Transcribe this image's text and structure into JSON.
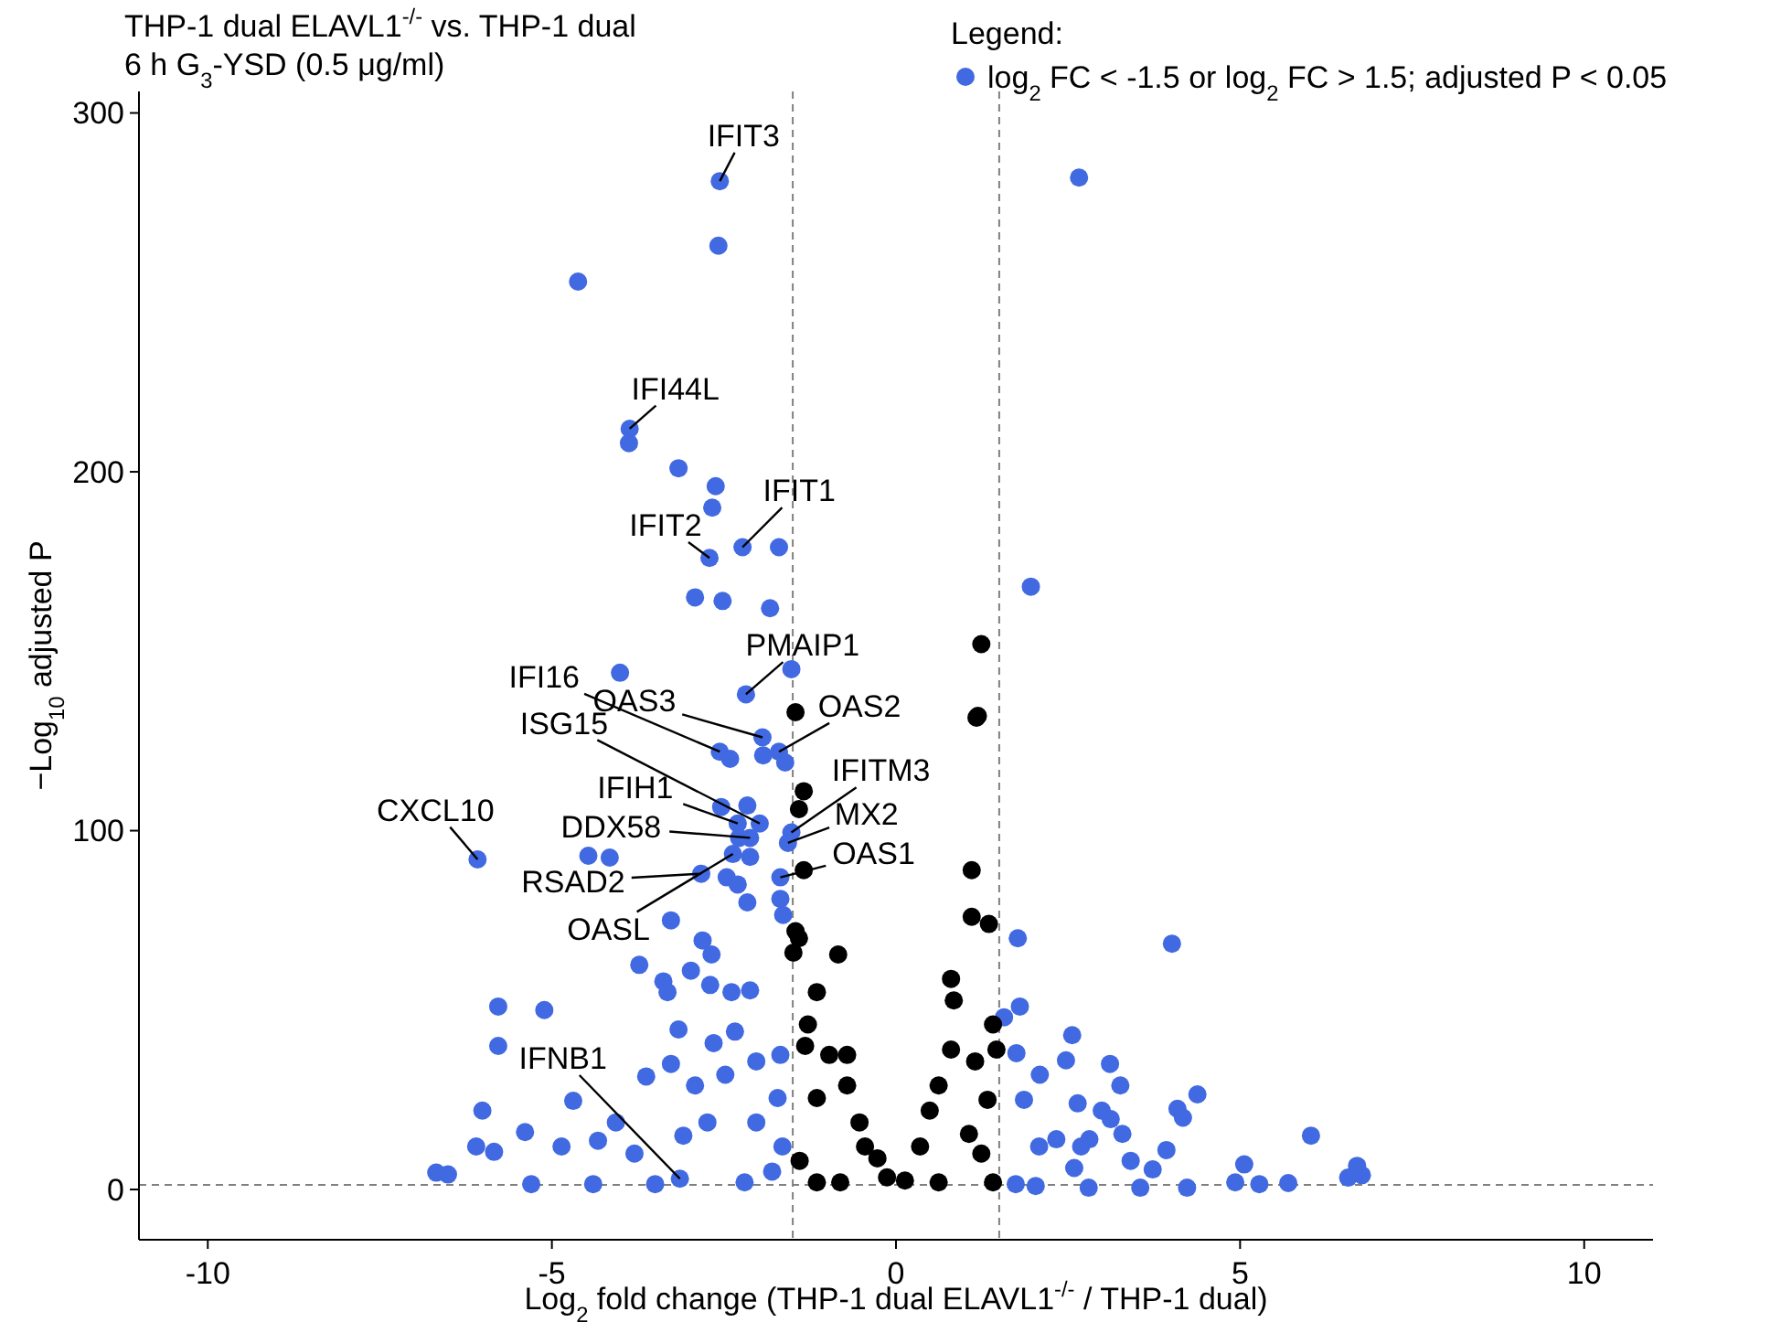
{
  "chart_data": {
    "type": "scatter",
    "title": "THP-1 dual ELAVL1$^{-/-}$ vs. THP-1 dual",
    "subtitle": "6 h G$_{3}$-YSD (0.5 μg/ml)",
    "xlabel": "Log$_{2}$ fold change (THP-1 dual ELAVL1$^{-/-}$ / THP-1 dual)",
    "ylabel": "−Log$_{10}$ adjusted P",
    "legend_title": "Legend:",
    "legend": "top right",
    "marker": "circle",
    "xlim": [
      -11,
      11
    ],
    "ylim": [
      -14,
      306
    ],
    "xticks": [
      -10,
      -5,
      0,
      5,
      10
    ],
    "yticks": [
      0,
      100,
      200,
      300
    ],
    "ref_lines": [
      {
        "axis": "x",
        "value": -1.5,
        "color": "#808080",
        "line_style": "dashed"
      },
      {
        "axis": "x",
        "value": 1.5,
        "color": "#808080",
        "line_style": "dashed"
      },
      {
        "axis": "y",
        "value": 1.3,
        "color": "#808080",
        "line_style": "dashed"
      }
    ],
    "annotations": [
      {
        "text": "IFIT3",
        "x": -2.56,
        "y": 281
      },
      {
        "text": "IFI44L",
        "x": -3.87,
        "y": 212
      },
      {
        "text": "IFIT1",
        "x": -2.23,
        "y": 179
      },
      {
        "text": "IFIT2",
        "x": -2.71,
        "y": 176
      },
      {
        "text": "PMAIP1",
        "x": -2.18,
        "y": 138
      },
      {
        "text": "IFI16",
        "x": -2.56,
        "y": 122
      },
      {
        "text": "OAS3",
        "x": -1.94,
        "y": 126
      },
      {
        "text": "OAS2",
        "x": -1.7,
        "y": 122
      },
      {
        "text": "ISG15",
        "x": -1.98,
        "y": 102
      },
      {
        "text": "IFITM3",
        "x": -1.52,
        "y": 99.5
      },
      {
        "text": "IFIH1",
        "x": -2.3,
        "y": 102
      },
      {
        "text": "DDX58",
        "x": -2.12,
        "y": 98
      },
      {
        "text": "MX2",
        "x": -1.57,
        "y": 96.6
      },
      {
        "text": "OAS1",
        "x": -1.68,
        "y": 87
      },
      {
        "text": "CXCL10",
        "x": -6.08,
        "y": 92
      },
      {
        "text": "RSAD2",
        "x": -2.83,
        "y": 88
      },
      {
        "text": "OASL",
        "x": -2.37,
        "y": 93.5
      },
      {
        "text": "IFNB1",
        "x": -3.14,
        "y": 3
      }
    ],
    "series": [
      {
        "name": "log$_{2}$ FC < -1.5 or log$_{2}$ FC > 1.5; adjusted P < 0.05",
        "color": "#4169e1",
        "x": [
          -2.56,
          -2.58,
          -4.62,
          -3.87,
          -3.88,
          -3.16,
          -2.62,
          -2.67,
          -2.23,
          -1.7,
          -2.71,
          -2.92,
          -2.52,
          -1.83,
          -1.52,
          -4.01,
          -2.18,
          -1.94,
          -2.56,
          -1.7,
          -2.41,
          -1.61,
          -1.93,
          -1.52,
          -1.57,
          -1.68,
          -1.98,
          -2.3,
          -2.16,
          -2.54,
          -2.12,
          -2.28,
          -2.83,
          -2.37,
          -2.12,
          -2.46,
          -2.3,
          -2.16,
          -1.68,
          -6.08,
          -4.47,
          -4.16,
          -3.27,
          -3.73,
          -2.81,
          -2.68,
          -1.64,
          -2.98,
          -3.38,
          -3.32,
          -2.7,
          -2.39,
          -2.12,
          -5.78,
          -5.11,
          -5.78,
          -3.14,
          -3.16,
          -4.69,
          -6.01,
          -3.63,
          -2.65,
          -2.34,
          -3.27,
          -2.03,
          -5.39,
          -4.86,
          -6.1,
          -5.84,
          -6.68,
          -6.51,
          -4.33,
          -4.07,
          -2.92,
          -2.48,
          -3.8,
          -3.09,
          -2.74,
          -2.03,
          -5.3,
          -4.4,
          -3.5,
          -2.2,
          -1.8,
          -1.65,
          -1.72,
          -1.68,
          2.66,
          1.96,
          1.77,
          4.01,
          1.8,
          1.57,
          2.56,
          2.47,
          3.11,
          1.75,
          2.09,
          3.26,
          4.38,
          2.64,
          4.09,
          4.17,
          2.99,
          3.12,
          1.86,
          3.29,
          6.03,
          3.93,
          2.33,
          2.81,
          3.41,
          3.73,
          5.06,
          6.7,
          6.77,
          6.57,
          5.7,
          5.28,
          4.93,
          4.23,
          3.55,
          2.8,
          2.03,
          1.74,
          2.08,
          2.59,
          2.69
        ],
        "values": [
          281,
          263,
          253,
          212,
          208,
          201,
          196,
          190,
          179,
          179,
          176,
          165,
          164,
          162,
          145,
          144,
          138,
          126,
          122,
          122,
          120,
          119,
          121,
          99.5,
          96.6,
          87,
          102,
          102,
          107,
          106.6,
          98,
          98,
          88,
          93.5,
          92.7,
          87,
          85,
          80,
          81,
          92,
          93,
          92.5,
          75,
          62.6,
          69.4,
          65.5,
          76.5,
          61,
          58,
          55,
          57,
          55,
          55.5,
          51,
          50,
          40,
          3,
          44.6,
          24.7,
          22,
          31.5,
          40.8,
          44,
          35,
          35.7,
          16,
          12,
          12,
          10.5,
          4.7,
          4.2,
          13.6,
          18.7,
          29,
          32,
          10,
          15,
          18.7,
          18.7,
          1.5,
          1.5,
          1.5,
          2,
          5,
          12,
          25.5,
          37.5,
          282,
          168,
          70,
          68.5,
          51,
          48,
          43,
          36,
          35,
          38,
          32,
          29,
          26.5,
          24,
          22.5,
          20,
          22,
          19.6,
          25,
          15.5,
          15,
          11,
          14,
          14,
          8,
          5.6,
          7,
          6.6,
          4,
          3.3,
          1.8,
          1.5,
          2,
          0.5,
          0.5,
          0.5,
          1,
          1.5,
          12,
          6,
          12
        ]
      },
      {
        "color": "#000000",
        "x": [
          1.24,
          1.19,
          -1.46,
          -1.34,
          -1.41,
          -1.34,
          1.17,
          1.1,
          1.1,
          1.35,
          -1.46,
          -1.49,
          -0.84,
          -1.41,
          -1.15,
          -1.28,
          -0.97,
          -0.71,
          -1.32,
          -0.71,
          -0.53,
          -0.27,
          -0.13,
          -0.45,
          -1.15,
          -1.4,
          -1.15,
          -0.81,
          0.13,
          0.35,
          0.49,
          0.62,
          0.8,
          0.8,
          0.84,
          1.15,
          1.41,
          1.46,
          1.33,
          1.06,
          0.62,
          1.41,
          1.24
        ],
        "values": [
          152,
          132,
          133,
          111,
          106,
          89,
          131.5,
          89,
          76,
          74,
          72,
          66,
          65.5,
          70,
          55,
          46,
          37.5,
          37.5,
          40,
          29,
          18.7,
          8.7,
          3.4,
          12,
          25.5,
          8,
          2,
          2,
          2.5,
          12,
          22,
          29,
          39,
          58.7,
          52.7,
          35.7,
          46,
          39,
          25,
          15.5,
          2,
          2,
          10
        ]
      }
    ]
  }
}
